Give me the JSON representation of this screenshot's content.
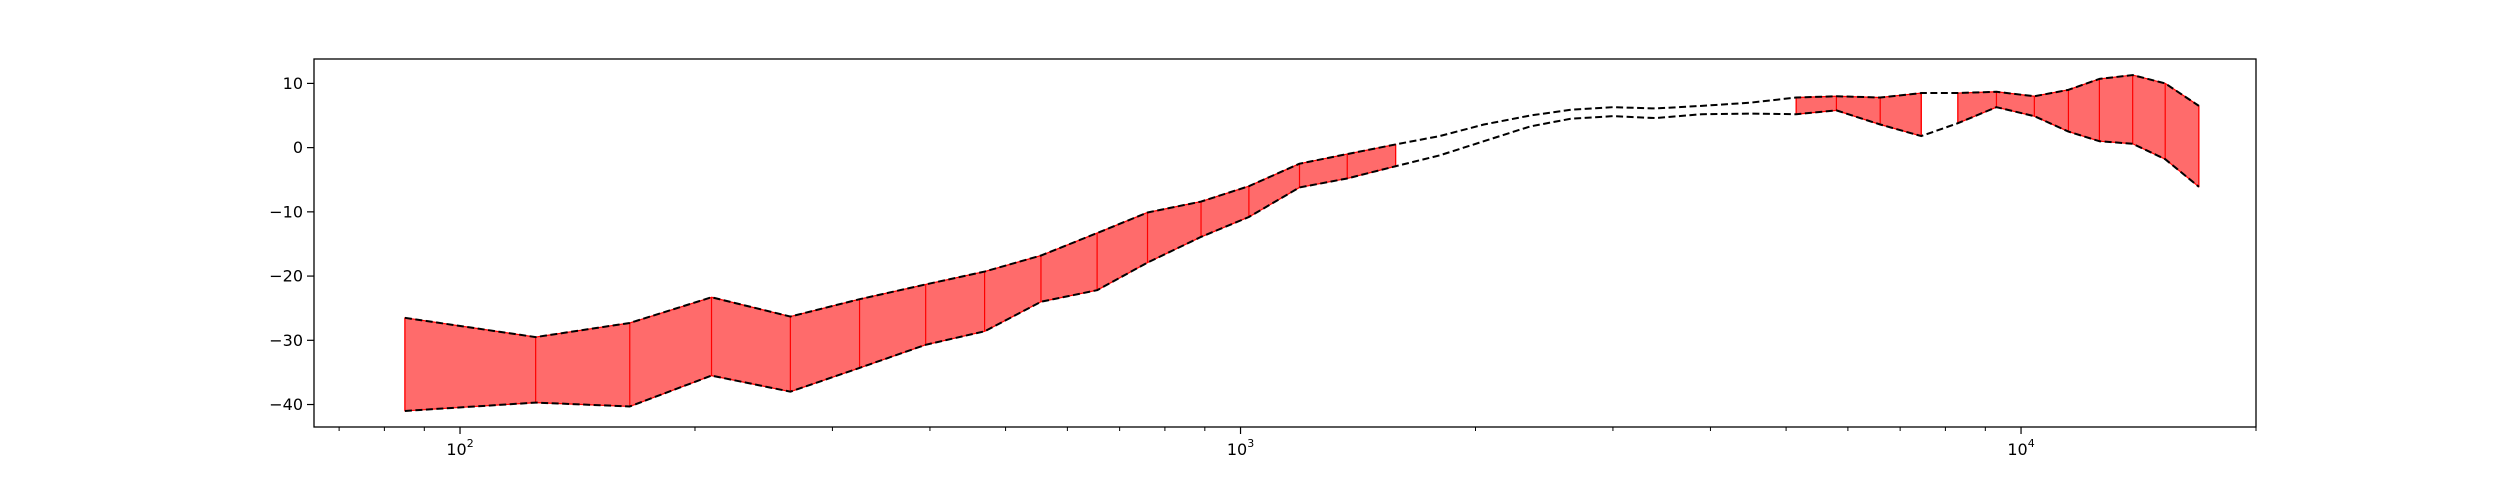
{
  "chart_data": {
    "type": "area",
    "title": "",
    "xlabel": "",
    "ylabel": "",
    "xscale": "log",
    "xlim": [
      65,
      20000
    ],
    "ylim": [
      -43.5,
      13.8
    ],
    "grid": false,
    "x_major_ticks": [
      {
        "value": 100,
        "base": "10",
        "exp": "2"
      },
      {
        "value": 1000,
        "base": "10",
        "exp": "3"
      },
      {
        "value": 10000,
        "base": "10",
        "exp": "4"
      }
    ],
    "x_minor_ticks": [
      70,
      80,
      90,
      200,
      300,
      400,
      500,
      600,
      700,
      800,
      900,
      2000,
      3000,
      4000,
      5000,
      6000,
      7000,
      8000,
      9000,
      20000
    ],
    "y_ticks": [
      {
        "value": 10,
        "label": "10"
      },
      {
        "value": 0,
        "label": "0"
      },
      {
        "value": -10,
        "label": "−10"
      },
      {
        "value": -20,
        "label": "−20"
      },
      {
        "value": -30,
        "label": "−30"
      },
      {
        "value": -40,
        "label": "−40"
      }
    ],
    "x": [
      85,
      125,
      165,
      210,
      265,
      325,
      395,
      470,
      555,
      655,
      760,
      890,
      1025,
      1190,
      1370,
      1580,
      1800,
      2050,
      2350,
      2650,
      3000,
      3400,
      3900,
      4500,
      5150,
      5800,
      6600,
      7450,
      8300,
      9300,
      10400,
      11500,
      12600,
      13900,
      15300,
      16900
    ],
    "series": [
      {
        "values": [
          -26.5,
          -29.5,
          -27.3,
          -23.3,
          -26.3,
          -23.6,
          -21.3,
          -19.3,
          -16.8,
          -13.3,
          -10.1,
          -8.4,
          -6.0,
          -2.5,
          -1.0,
          0.5,
          1.8,
          3.6,
          5.0,
          5.9,
          6.3,
          6.1,
          6.5,
          7.0,
          7.8,
          8.0,
          7.8,
          8.5,
          8.5,
          8.7,
          8.0,
          9.0,
          10.7,
          11.3,
          10.0,
          6.5
        ]
      },
      {
        "values": [
          -41.0,
          -39.7,
          -40.3,
          -35.5,
          -38.0,
          -34.3,
          -30.7,
          -28.6,
          -24.0,
          -22.2,
          -17.9,
          -13.9,
          -10.8,
          -6.2,
          -4.8,
          -2.9,
          -1.2,
          1.0,
          3.3,
          4.5,
          4.9,
          4.6,
          5.2,
          5.3,
          5.2,
          5.8,
          3.6,
          1.8,
          3.8,
          6.3,
          4.9,
          2.5,
          1.0,
          0.6,
          -1.8,
          -6.1
        ]
      }
    ],
    "fill_color": "#ff6b6b",
    "edge_color": "#ff0000",
    "line_color": "#000000",
    "filled_segments": [
      [
        0,
        15
      ],
      [
        24,
        27
      ],
      [
        28,
        35
      ]
    ]
  }
}
